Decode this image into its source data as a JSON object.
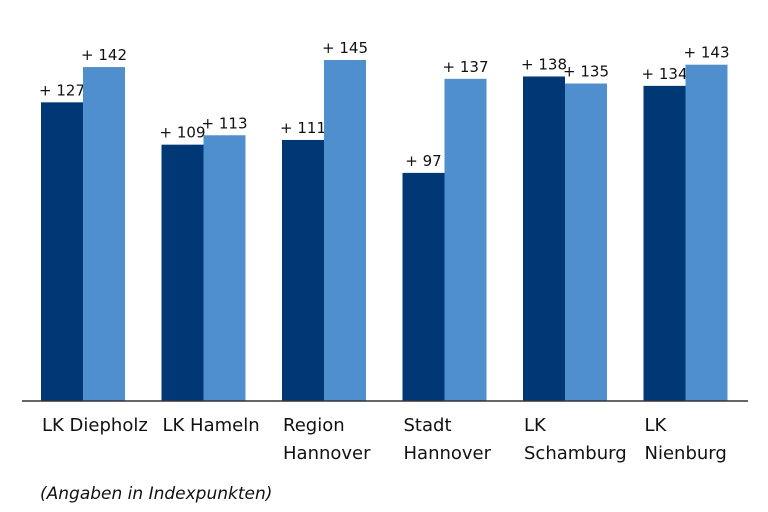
{
  "chart_data": {
    "type": "bar",
    "categories": [
      [
        "LK Diepholz"
      ],
      [
        "LK Hameln"
      ],
      [
        "Region",
        "Hannover"
      ],
      [
        "Stadt",
        "Hannover"
      ],
      [
        "LK",
        "Schamburg"
      ],
      [
        "LK",
        "Nienburg"
      ]
    ],
    "series": [
      {
        "values": [
          127,
          109,
          111,
          97,
          138,
          134
        ],
        "labels": [
          "+ 127",
          "+ 109",
          "+ 111",
          "+ 97",
          "+ 138",
          "+ 134"
        ],
        "color": "#003876"
      },
      {
        "values": [
          142,
          113,
          145,
          137,
          135,
          143
        ],
        "labels": [
          "+ 142",
          "+ 113",
          "+ 145",
          "+ 137",
          "+ 135",
          "+ 143"
        ],
        "color": "#4f8fce"
      }
    ],
    "ylim": [
      0,
      145
    ],
    "grid": false,
    "legend": "none",
    "axis_color": "#333333"
  },
  "note": "(Angaben in Indexpunkten)"
}
